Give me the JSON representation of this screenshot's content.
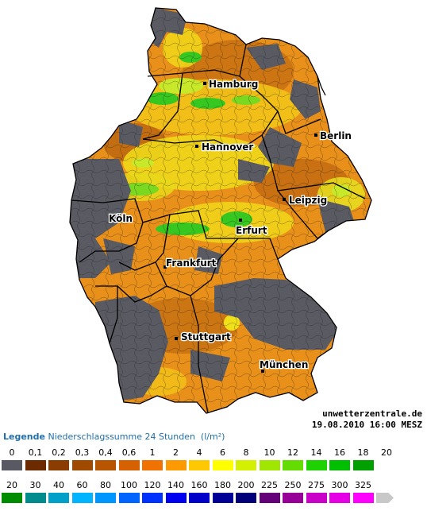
{
  "map": {
    "cities": [
      {
        "name": "Hamburg"
      },
      {
        "name": "Berlin"
      },
      {
        "name": "Hannover"
      },
      {
        "name": "Leipzig"
      },
      {
        "name": "Köln"
      },
      {
        "name": "Erfurt"
      },
      {
        "name": "Frankfurt"
      },
      {
        "name": "Stuttgart"
      },
      {
        "name": "München"
      }
    ],
    "colors": {
      "dry": "#5a5a63",
      "land_orange": "#e8901a",
      "land_brown": "#a8560c",
      "yellow": "#f0e01a",
      "lime": "#c8e82a",
      "green": "#36c820",
      "state_border": "#000000",
      "district_border": "#1a1a1a"
    }
  },
  "credit": {
    "site": "unwetterzentrale.de",
    "timestamp": "19.08.2010 16:00 MESZ"
  },
  "legend": {
    "title_bold": "Legende",
    "title_rest": "Niederschlagssumme 24 Stunden",
    "unit": "(l/m²)",
    "row1": [
      {
        "label": "0",
        "color": "#595964"
      },
      {
        "label": "0,1",
        "color": "#6b2a00"
      },
      {
        "label": "0,2",
        "color": "#8b3d00"
      },
      {
        "label": "0,3",
        "color": "#a04a00"
      },
      {
        "label": "0,4",
        "color": "#b85500"
      },
      {
        "label": "0,6",
        "color": "#d66100"
      },
      {
        "label": "1",
        "color": "#f07200"
      },
      {
        "label": "2",
        "color": "#ff9900"
      },
      {
        "label": "4",
        "color": "#ffc800"
      },
      {
        "label": "6",
        "color": "#ffff00"
      },
      {
        "label": "8",
        "color": "#d2f000"
      },
      {
        "label": "10",
        "color": "#a0e600"
      },
      {
        "label": "12",
        "color": "#64dc00"
      },
      {
        "label": "14",
        "color": "#1ed200"
      },
      {
        "label": "16",
        "color": "#00be00"
      },
      {
        "label": "18",
        "color": "#00a000"
      },
      {
        "label": "20",
        "color": ""
      }
    ],
    "row2": [
      {
        "label": "20",
        "color": "#008c00"
      },
      {
        "label": "30",
        "color": "#008c8c"
      },
      {
        "label": "40",
        "color": "#00a0c8"
      },
      {
        "label": "60",
        "color": "#00b4ff"
      },
      {
        "label": "80",
        "color": "#0096ff"
      },
      {
        "label": "100",
        "color": "#0064ff"
      },
      {
        "label": "120",
        "color": "#0032ff"
      },
      {
        "label": "140",
        "color": "#0000f0"
      },
      {
        "label": "160",
        "color": "#0000c8"
      },
      {
        "label": "180",
        "color": "#000096"
      },
      {
        "label": "200",
        "color": "#000078"
      },
      {
        "label": "225",
        "color": "#640078"
      },
      {
        "label": "250",
        "color": "#960096"
      },
      {
        "label": "275",
        "color": "#c800c8"
      },
      {
        "label": "300",
        "color": "#e600e6"
      },
      {
        "label": "325",
        "color": "#ff00ff"
      },
      {
        "label": "",
        "color": "#c8c8c8"
      }
    ]
  }
}
